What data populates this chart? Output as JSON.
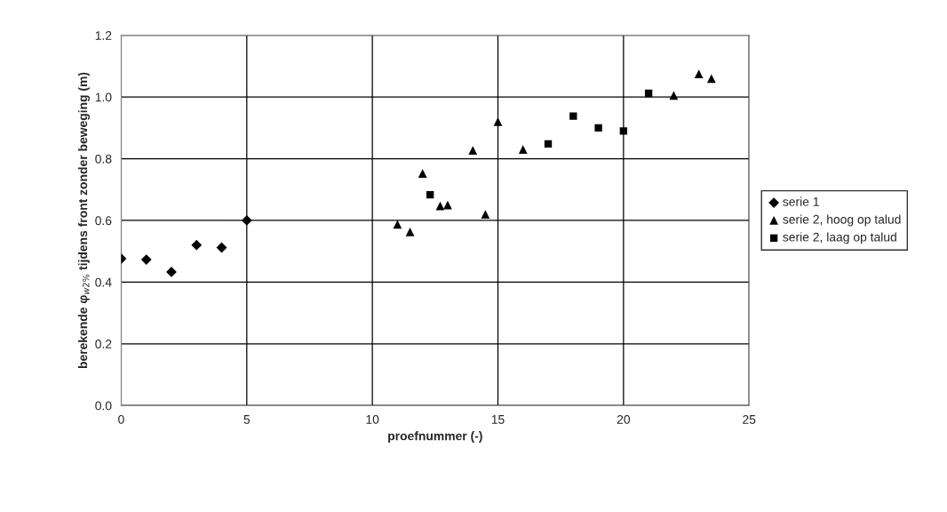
{
  "chart_data": {
    "type": "scatter",
    "xlabel": "proefnummer (-)",
    "ylabel": "berekende φ$_{w2%}$ tijdens front zonder beweging (m)",
    "xlim": [
      0,
      25
    ],
    "xticks": [
      0,
      5,
      10,
      15,
      20,
      25
    ],
    "ylim": [
      0,
      1.2
    ],
    "yticks": [
      {
        "value": 0,
        "label": "0.0"
      },
      {
        "value": 0.2,
        "label": "0.2"
      },
      {
        "value": 0.4,
        "label": "0.4"
      },
      {
        "value": 0.6,
        "label": "0.6"
      },
      {
        "value": 0.8,
        "label": "0.8"
      },
      {
        "value": 1.0,
        "label": "1.0"
      },
      {
        "value": 1.2,
        "label": "1.2"
      }
    ],
    "grid": true,
    "legend": "right",
    "series": [
      {
        "name": "serie 1",
        "color": "#000000",
        "marker": "diamond",
        "x": [
          0,
          1,
          2,
          3,
          4,
          5
        ],
        "values": [
          0.476,
          0.473,
          0.433,
          0.52,
          0.512,
          0.6
        ]
      },
      {
        "name": "serie 2, hoog op talud",
        "color": "#000000",
        "marker": "triangle",
        "x": [
          11,
          11.5,
          12,
          12.7,
          13,
          14,
          14.5,
          15,
          16,
          22,
          23,
          23.5
        ],
        "values": [
          0.587,
          0.563,
          0.752,
          0.647,
          0.65,
          0.827,
          0.62,
          0.92,
          0.83,
          1.005,
          1.075,
          1.06
        ]
      },
      {
        "name": "serie 2, laag op talud",
        "color": "#000000",
        "marker": "square",
        "x": [
          12.3,
          17,
          18,
          19,
          20,
          21
        ],
        "values": [
          0.683,
          0.848,
          0.938,
          0.9,
          0.89,
          1.012
        ]
      }
    ]
  }
}
